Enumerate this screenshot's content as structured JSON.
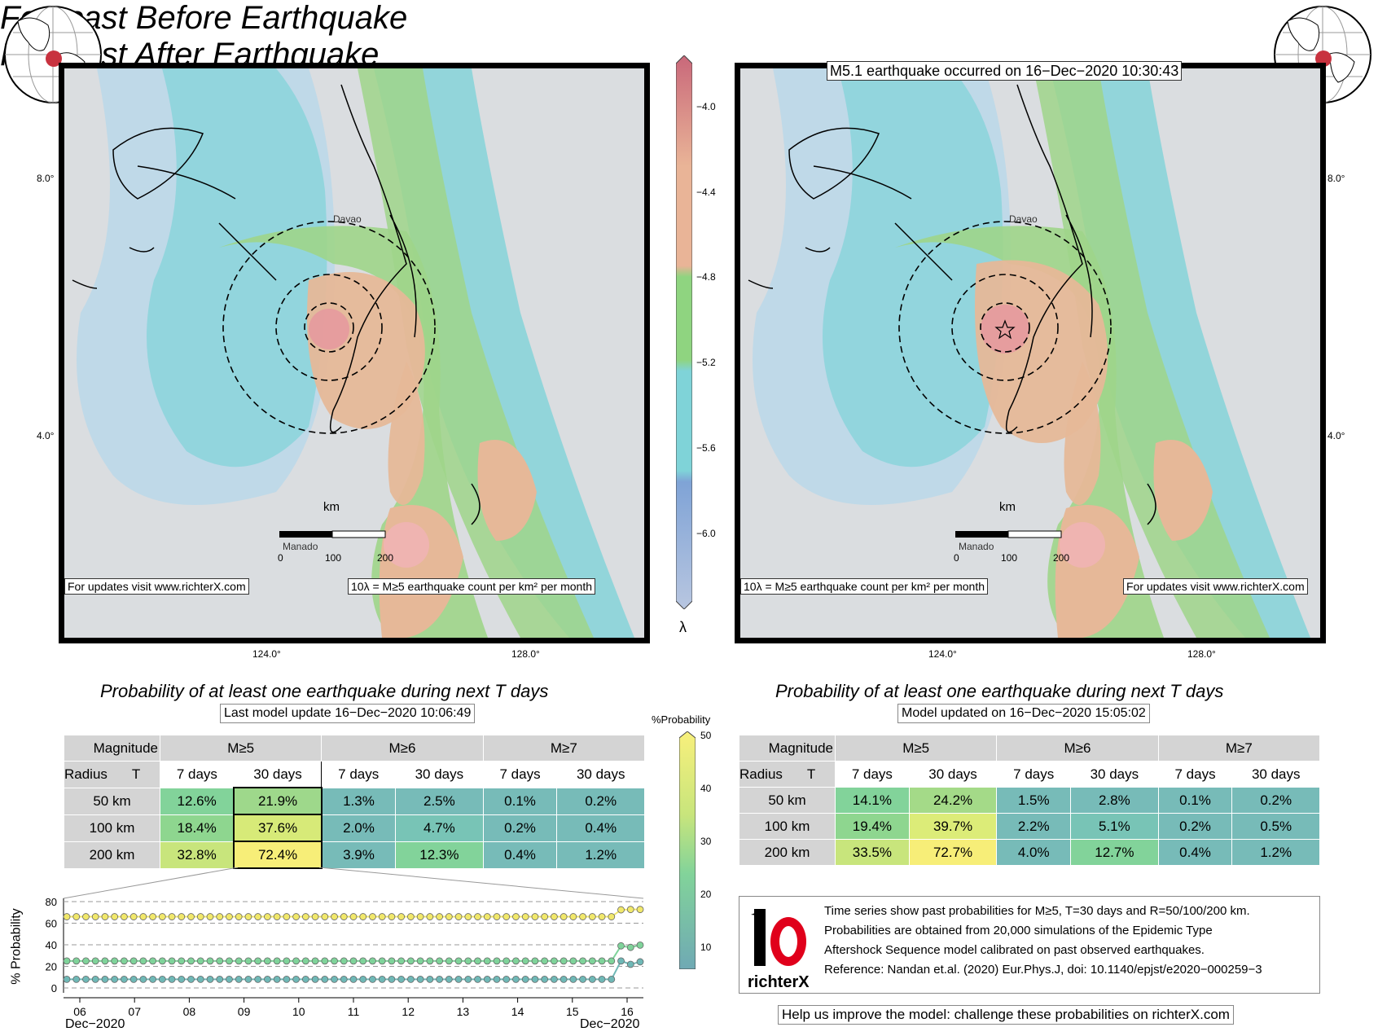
{
  "left": {
    "title": "Forecast Before Earthquake",
    "footer_left": "For updates visit www.richterX.com",
    "footer_right_html": "10λ = M≥5 earthquake count per km² per month",
    "scale_label": "km",
    "scale_ticks": [
      "0",
      "100",
      "200"
    ],
    "place_labels": [
      "Davao",
      "Manado"
    ],
    "lat_labels": [
      "8.0°",
      "4.0°"
    ],
    "lon_labels": [
      "124.0°",
      "128.0°"
    ]
  },
  "right": {
    "title": "Forecast After Earthquake",
    "event_label": "M5.1 earthquake occurred on 16−Dec−2020 10:30:43",
    "footer_left": "10λ = M≥5 earthquake count per km² per month",
    "footer_right": "For updates visit www.richterX.com",
    "scale_label": "km",
    "scale_ticks": [
      "0",
      "100",
      "200"
    ],
    "place_labels": [
      "Davao",
      "Manado"
    ],
    "lat_labels": [
      "8.0°",
      "4.0°"
    ],
    "lon_labels": [
      "124.0°",
      "128.0°"
    ]
  },
  "lambda_scale": {
    "label": "λ",
    "ticks": [
      "−4.0",
      "−4.4",
      "−4.8",
      "−5.2",
      "−5.6",
      "−6.0"
    ],
    "colors": [
      "#c9687a",
      "#e9b497",
      "#8fd480",
      "#7fd3d8",
      "#7fa3d6"
    ]
  },
  "prob_left": {
    "title": "Probability of at least one earthquake during next T days",
    "subtitle": "Last model update 16−Dec−2020 10:06:49",
    "magnitude_label": "Magnitude",
    "radius_label": "Radius",
    "t_label": "T",
    "magnitudes": [
      "M≥5",
      "M≥6",
      "M≥7"
    ],
    "periods": [
      "7 days",
      "30 days",
      "7 days",
      "30 days",
      "7 days",
      "30 days"
    ],
    "rows": [
      {
        "radius": "50 km",
        "values": [
          "12.6%",
          "21.9%",
          "1.3%",
          "2.5%",
          "0.1%",
          "0.2%"
        ]
      },
      {
        "radius": "100 km",
        "values": [
          "18.4%",
          "37.6%",
          "2.0%",
          "4.7%",
          "0.2%",
          "0.4%"
        ]
      },
      {
        "radius": "200 km",
        "values": [
          "32.8%",
          "72.4%",
          "3.9%",
          "12.3%",
          "0.4%",
          "1.2%"
        ]
      }
    ]
  },
  "prob_right": {
    "title": "Probability of at least one earthquake during next T days",
    "subtitle": "Model updated on 16−Dec−2020 15:05:02",
    "magnitude_label": "Magnitude",
    "radius_label": "Radius",
    "t_label": "T",
    "magnitudes": [
      "M≥5",
      "M≥6",
      "M≥7"
    ],
    "periods": [
      "7 days",
      "30 days",
      "7 days",
      "30 days",
      "7 days",
      "30 days"
    ],
    "rows": [
      {
        "radius": "50 km",
        "values": [
          "14.1%",
          "24.2%",
          "1.5%",
          "2.8%",
          "0.1%",
          "0.2%"
        ]
      },
      {
        "radius": "100 km",
        "values": [
          "19.4%",
          "39.7%",
          "2.2%",
          "5.1%",
          "0.2%",
          "0.5%"
        ]
      },
      {
        "radius": "200 km",
        "values": [
          "33.5%",
          "72.7%",
          "4.0%",
          "12.7%",
          "0.4%",
          "1.2%"
        ]
      }
    ]
  },
  "prob_scale": {
    "label": "%Probability",
    "ticks": [
      "50",
      "40",
      "30",
      "20",
      "10"
    ]
  },
  "chart_data": {
    "type": "line",
    "ylabel": "% Probability",
    "ylim": [
      0,
      80
    ],
    "yticks": [
      "80",
      "60",
      "40",
      "20",
      "0"
    ],
    "xticks": [
      "06",
      "07",
      "08",
      "09",
      "10",
      "11",
      "12",
      "13",
      "14",
      "15",
      "16"
    ],
    "x_left_label": "Dec−2020",
    "x_right_label": "Dec−2020",
    "series": [
      {
        "color": "#f1e86b",
        "values": [
          66,
          66,
          66,
          66,
          66,
          66,
          66,
          66,
          66,
          66,
          66,
          66,
          66,
          66,
          66,
          66,
          66,
          66,
          66,
          66,
          66,
          66,
          66,
          66,
          66,
          66,
          66,
          66,
          66,
          66,
          66,
          66,
          66,
          66,
          66,
          66,
          66,
          66,
          66,
          66,
          66,
          66,
          66,
          66,
          66,
          66,
          66,
          66,
          66,
          66,
          66,
          66,
          66,
          66,
          66,
          66,
          66,
          66,
          72.4,
          72.7,
          72.7
        ]
      },
      {
        "color": "#7fd39a",
        "values": [
          25,
          25,
          25,
          25,
          25,
          25,
          25,
          25,
          25,
          25,
          25,
          25,
          25,
          25,
          25,
          25,
          25,
          25,
          25,
          25,
          25,
          25,
          25,
          25,
          25,
          25,
          25,
          25,
          25,
          25,
          25,
          25,
          25,
          25,
          25,
          25,
          25,
          25,
          25,
          25,
          25,
          25,
          25,
          25,
          25,
          25,
          25,
          25,
          25,
          25,
          25,
          25,
          25,
          25,
          25,
          25,
          25,
          25,
          39,
          37.6,
          39.7
        ]
      },
      {
        "color": "#6fb8b6",
        "values": [
          8,
          8,
          8,
          8,
          8,
          8,
          8,
          8,
          8,
          8,
          8,
          8,
          8,
          8,
          8,
          8,
          8,
          8,
          8,
          8,
          8,
          8,
          8,
          8,
          8,
          8,
          8,
          8,
          8,
          8,
          8,
          8,
          8,
          8,
          8,
          8,
          8,
          8,
          8,
          8,
          8,
          8,
          8,
          8,
          8,
          8,
          8,
          8,
          8,
          8,
          8,
          8,
          8,
          8,
          8,
          8,
          8,
          8,
          25,
          21.9,
          24.2
        ]
      }
    ]
  },
  "info": {
    "logo_text": "richterX",
    "lines": [
      "Time series show past probabilities for M≥5, T=30 days and R=50/100/200 km.",
      "Probabilities are obtained from 20,000 simulations of the Epidemic Type",
      "Aftershock Sequence model calibrated on past observed earthquakes.",
      "Reference: Nandan et.al. (2020) Eur.Phys.J, doi: 10.1140/epjst/e2020−000259−3"
    ],
    "bottom_note": "Help us improve the model: challenge these probabilities on richterX.com"
  }
}
